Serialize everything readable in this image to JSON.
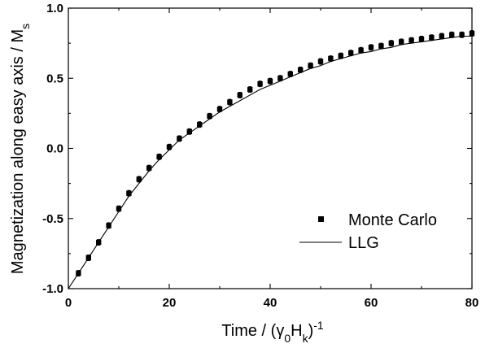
{
  "chart_data": {
    "type": "scatter",
    "xlabel": "Time / (γ0Hk)-1",
    "xlabel_parts": {
      "prefix": "Time / (",
      "gamma": "γ",
      "gamma_sub": "0",
      "h": "H",
      "h_sub": "k",
      "close": ")",
      "sup": "-1"
    },
    "ylabel": "Magnetization along easy axis / Ms",
    "ylabel_parts": {
      "main": "Magnetization along easy axis / M",
      "sub": "s"
    },
    "xlim": [
      0,
      80
    ],
    "ylim": [
      -1.0,
      1.0
    ],
    "x_ticks": [
      0,
      20,
      40,
      60,
      80
    ],
    "x_tick_labels": [
      "0",
      "20",
      "40",
      "60",
      "80"
    ],
    "y_ticks": [
      -1.0,
      -0.5,
      0.0,
      0.5,
      1.0
    ],
    "y_tick_labels": [
      "-1.0",
      "-0.5",
      "0.0",
      "0.5",
      "1.0"
    ],
    "grid": false,
    "legend_position": "bottom-right",
    "series": [
      {
        "name": "Monte Carlo",
        "style": "square-markers-with-error-bars",
        "x": [
          2,
          4,
          6,
          8,
          10,
          12,
          14,
          16,
          18,
          20,
          22,
          24,
          26,
          28,
          30,
          32,
          34,
          36,
          38,
          40,
          42,
          44,
          46,
          48,
          50,
          52,
          54,
          56,
          58,
          60,
          62,
          64,
          66,
          68,
          70,
          72,
          74,
          76,
          78,
          80
        ],
        "y": [
          -0.89,
          -0.78,
          -0.67,
          -0.55,
          -0.43,
          -0.32,
          -0.22,
          -0.14,
          -0.06,
          0.01,
          0.07,
          0.12,
          0.17,
          0.23,
          0.28,
          0.33,
          0.38,
          0.42,
          0.46,
          0.48,
          0.5,
          0.53,
          0.56,
          0.59,
          0.62,
          0.64,
          0.66,
          0.68,
          0.7,
          0.72,
          0.73,
          0.75,
          0.76,
          0.77,
          0.78,
          0.79,
          0.8,
          0.81,
          0.81,
          0.82
        ],
        "error": [
          0.02,
          0.02,
          0.02,
          0.02,
          0.02,
          0.02,
          0.02,
          0.02,
          0.02,
          0.02,
          0.02,
          0.02,
          0.02,
          0.02,
          0.02,
          0.02,
          0.02,
          0.02,
          0.02,
          0.02,
          0.02,
          0.02,
          0.02,
          0.02,
          0.02,
          0.02,
          0.02,
          0.02,
          0.02,
          0.02,
          0.02,
          0.02,
          0.02,
          0.02,
          0.02,
          0.02,
          0.02,
          0.02,
          0.02,
          0.02
        ]
      },
      {
        "name": "LLG",
        "style": "solid-line",
        "x": [
          0,
          2,
          4,
          6,
          8,
          10,
          12,
          14,
          16,
          18,
          20,
          22,
          24,
          26,
          28,
          30,
          32,
          34,
          36,
          38,
          40,
          42,
          44,
          46,
          48,
          50,
          52,
          54,
          56,
          58,
          60,
          62,
          64,
          66,
          68,
          70,
          72,
          74,
          76,
          78,
          80
        ],
        "y": [
          -1.0,
          -0.89,
          -0.78,
          -0.67,
          -0.56,
          -0.45,
          -0.34,
          -0.25,
          -0.16,
          -0.08,
          -0.01,
          0.06,
          0.11,
          0.16,
          0.21,
          0.26,
          0.3,
          0.34,
          0.38,
          0.42,
          0.45,
          0.48,
          0.51,
          0.54,
          0.57,
          0.59,
          0.62,
          0.64,
          0.66,
          0.68,
          0.69,
          0.71,
          0.72,
          0.74,
          0.75,
          0.76,
          0.77,
          0.78,
          0.79,
          0.8,
          0.8
        ]
      }
    ],
    "colors": {
      "axes": "#000000",
      "markers": "#000000",
      "line": "#000000",
      "background": "#ffffff"
    }
  }
}
